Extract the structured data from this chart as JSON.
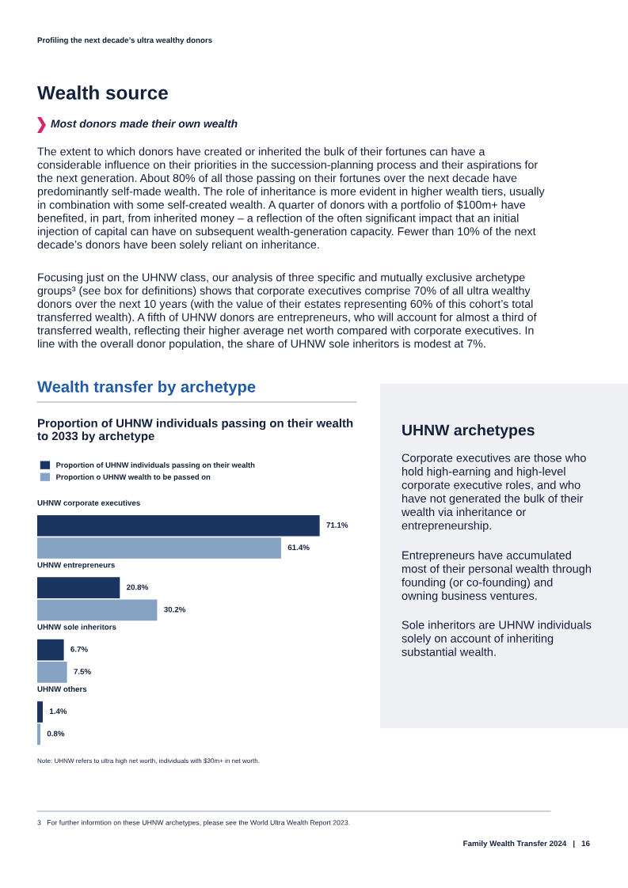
{
  "chart_data": {
    "type": "bar",
    "orientation": "horizontal",
    "title": "Wealth transfer by archetype",
    "subtitle": "Proportion of UHNW individuals passing on their wealth to 2033 by archetype",
    "categories": [
      "UHNW corporate executives",
      "UHNW entrepreneurs",
      "UHNW sole inheritors",
      "UHNW others"
    ],
    "series": [
      {
        "name": "Proportion of UHNW individuals passing on their wealth",
        "color": "#1c3461",
        "values": [
          71.1,
          20.8,
          6.7,
          1.4
        ],
        "value_labels": [
          "71.1%",
          "20.8%",
          "6.7%",
          "1.4%"
        ]
      },
      {
        "name": "Proportion o UHNW wealth to be passed on",
        "color": "#86a3c3",
        "values": [
          61.4,
          30.2,
          7.5,
          0.8
        ],
        "value_labels": [
          "61.4%",
          "30.2%",
          "7.5%",
          "0.8%"
        ]
      }
    ],
    "legend": "top left",
    "tick_labels": false,
    "annotations": [
      "Profiling the next decade’s ultra wealthy donors",
      "Wealth source",
      "Most donors made their own wealth",
      "The extent to which donors have created or inherited the bulk of their fortunes can have a considerable influence on their priorities in the succession-planning process and their aspirations for the next generation. About 80% of all those passing on their fortunes over the next decade have predominantly self-made wealth. The role of inheritance is more evident in higher wealth tiers, usually in combination with some self-created wealth. A quarter of donors with a portfolio of $100m+ have benefited, in part, from inherited money – a reflection of the often significant impact that an initial injection of capital can have on subsequent wealth-generation capacity. Fewer than 10% of the next decade’s donors have been solely reliant on inheritance.",
      "Focusing just on the UHNW class, our analysis of three specific and mutually exclusive archetype groups³ (see box for definitions) shows that corporate executives comprise 70% of all ultra wealthy donors over the next 10 years (with the value of their estates representing 60% of this cohort’s total transferred wealth). A fifth of UHNW donors are entrepreneurs, who will account for almost a third of transferred wealth, reflecting their higher average net worth compared with corporate executives. In line with the overall donor population, the share of UHNW sole inheritors is modest at 7%.",
      "UHNW archetypes",
      "Corporate executives are those who hold high-earning and high-level corporate executive roles, and who have not generated the bulk of their wealth via inheritance or entrepreneurship.",
      "Entrepreneurs have accumulated most of their personal wealth through founding (or co-founding) and owning business ventures.",
      "Sole inheritors are UHNW individuals solely on account of inheriting substantial wealth.",
      "Note: UHNW refers to ultra high net worth, individuals with $30m+ in net worth.",
      "3   For further informtion on these UHNW archetypes, please see the World Ultra Wealth Report 2023.",
      "Family Wealth Transfer 2024   |   16"
    ]
  }
}
